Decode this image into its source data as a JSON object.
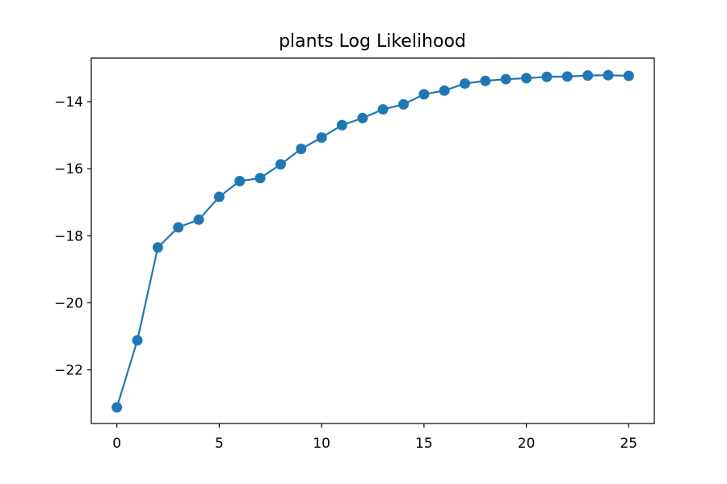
{
  "chart_data": {
    "type": "line",
    "title": "plants Log Likelihood",
    "xlabel": "",
    "ylabel": "",
    "xlim": [
      -1.25,
      26.25
    ],
    "ylim": [
      -23.6,
      -12.7
    ],
    "x_ticks": [
      0,
      5,
      10,
      15,
      20,
      25
    ],
    "y_ticks": [
      -22,
      -20,
      -18,
      -16,
      -14
    ],
    "x_tick_labels": [
      "0",
      "5",
      "10",
      "15",
      "20",
      "25"
    ],
    "y_tick_labels": [
      "−22",
      "−20",
      "−18",
      "−16",
      "−14"
    ],
    "grid": false,
    "legend": "none",
    "series": [
      {
        "color": "#1f77b4",
        "marker": "circle",
        "x": [
          0,
          1,
          2,
          3,
          4,
          5,
          6,
          7,
          8,
          9,
          10,
          11,
          12,
          13,
          14,
          15,
          16,
          17,
          18,
          19,
          20,
          21,
          22,
          23,
          24,
          25
        ],
        "values": [
          -23.12,
          -21.12,
          -18.35,
          -17.75,
          -17.52,
          -16.84,
          -16.37,
          -16.28,
          -15.87,
          -15.41,
          -15.07,
          -14.7,
          -14.49,
          -14.23,
          -14.08,
          -13.78,
          -13.67,
          -13.46,
          -13.38,
          -13.33,
          -13.3,
          -13.26,
          -13.25,
          -13.22,
          -13.21,
          -13.23
        ]
      }
    ]
  }
}
